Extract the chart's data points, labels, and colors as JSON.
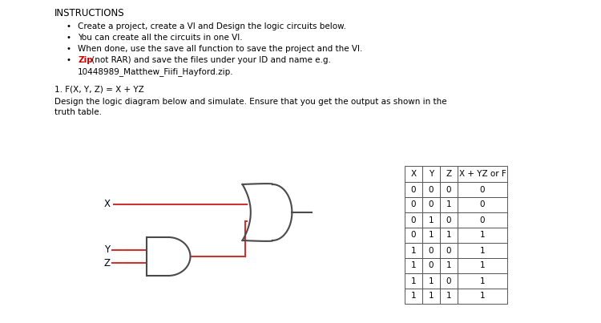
{
  "title": "INSTRUCTIONS",
  "bullet1": "Create a project, create a VI and Design the logic circuits below.",
  "bullet2": "You can create all the circuits in one VI.",
  "bullet3": "When done, use the save all function to save the project and the VI.",
  "bullet4a": "Zip",
  "bullet4b": " (not RAR) and save the files under your ID and name e.g.",
  "bullet4c": "10448989_Matthew_Fiifi_Hayford.zip.",
  "formula": "1. F(X, Y, Z) = X + YZ",
  "desc1": "Design the logic diagram below and simulate. Ensure that you get the output as shown in the",
  "desc2": "truth table.",
  "truth_table_headers": [
    "X",
    "Y",
    "Z",
    "X + YZ or F"
  ],
  "truth_table_rows": [
    [
      0,
      0,
      0,
      0
    ],
    [
      0,
      0,
      1,
      0
    ],
    [
      0,
      1,
      0,
      0
    ],
    [
      0,
      1,
      1,
      1
    ],
    [
      1,
      0,
      0,
      1
    ],
    [
      1,
      0,
      1,
      1
    ],
    [
      1,
      1,
      0,
      1
    ],
    [
      1,
      1,
      1,
      1
    ]
  ],
  "bg_color": "#ffffff",
  "text_color": "#000000",
  "zip_color": "#cc0000",
  "wire_color": "#cc3333",
  "gate_color": "#4a4a4a",
  "gate_lw": 1.5,
  "wire_lw": 1.5,
  "fs_title": 8.5,
  "fs_body": 7.5,
  "fs_gate": 8.5,
  "fs_table": 7.5
}
